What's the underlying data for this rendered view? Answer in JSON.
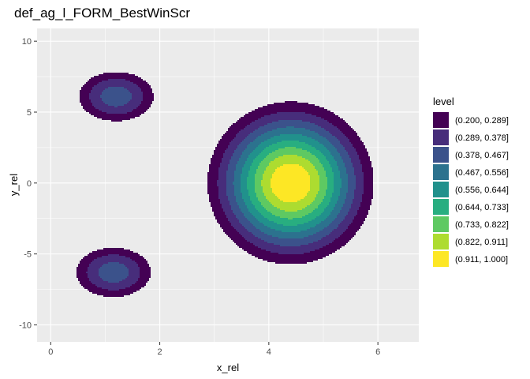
{
  "chart_data": {
    "type": "contour",
    "title": "def_ag_l_FORM_BestWinScr",
    "xlabel": "x_rel",
    "ylabel": "y_rel",
    "xlim": [
      -0.25,
      6.75
    ],
    "ylim": [
      -11.2,
      10.9
    ],
    "x_ticks": [
      0,
      2,
      4,
      6
    ],
    "y_ticks": [
      -10,
      -5,
      0,
      5,
      10
    ],
    "grid": true,
    "legend_position": "right",
    "legend_title": "level",
    "levels": [
      {
        "label": "(0.200, 0.289]",
        "color": "#440154"
      },
      {
        "label": "(0.289, 0.378]",
        "color": "#472d7b"
      },
      {
        "label": "(0.378, 0.467]",
        "color": "#3b528b"
      },
      {
        "label": "(0.467, 0.556]",
        "color": "#2c728e"
      },
      {
        "label": "(0.556, 0.644]",
        "color": "#21918c"
      },
      {
        "label": "(0.644, 0.733]",
        "color": "#28ae80"
      },
      {
        "label": "(0.733, 0.822]",
        "color": "#5ec962"
      },
      {
        "label": "(0.822, 0.911]",
        "color": "#addc30"
      },
      {
        "label": "(0.911, 1.000]",
        "color": "#fde725"
      }
    ],
    "density_peaks": [
      {
        "x": 4.4,
        "y": 0.0,
        "amp": 1.0,
        "sx": 0.85,
        "sy": 3.2
      },
      {
        "x": 1.2,
        "y": 6.1,
        "amp": 0.43,
        "sx": 0.55,
        "sy": 1.4
      },
      {
        "x": 1.15,
        "y": -6.3,
        "amp": 0.43,
        "sx": 0.55,
        "sy": 1.4
      }
    ]
  }
}
